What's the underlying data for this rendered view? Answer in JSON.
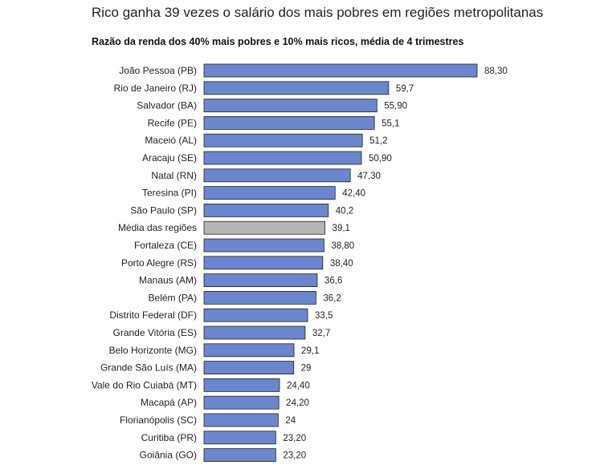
{
  "chart_data": {
    "type": "bar",
    "orientation": "horizontal",
    "title": "Rico ganha 39 vezes o salário dos mais pobres em regiões metropolitanas",
    "subtitle": "Razão da renda dos 40% mais pobres e 10% mais ricos, média de 4 trimestres",
    "categories": [
      "João Pessoa (PB)",
      "Rio de Janeiro (RJ)",
      "Salvador (BA)",
      "Recife (PE)",
      "Maceió (AL)",
      "Aracaju (SE)",
      "Natal (RN)",
      "Teresina (PI)",
      "São Paulo (SP)",
      "Média das regiões",
      "Fortaleza (CE)",
      "Porto Alegre (RS)",
      "Manaus (AM)",
      "Belém (PA)",
      "Distrito Federal (DF)",
      "Grande Vitória (ES)",
      "Belo Horizonte (MG)",
      "Grande São Luís (MA)",
      "Vale do Rio Cuiabá (MT)",
      "Macapá (AP)",
      "Florianópolis (SC)",
      "Curitiba (PR)",
      "Goiânia (GO)"
    ],
    "values": [
      88.3,
      59.7,
      55.9,
      55.1,
      51.2,
      50.9,
      47.3,
      42.4,
      40.2,
      39.1,
      38.8,
      38.4,
      36.6,
      36.2,
      33.5,
      32.7,
      29.1,
      29,
      24.4,
      24.2,
      24,
      23.2,
      23.2
    ],
    "value_labels": [
      "88,30",
      "59,7",
      "55,90",
      "55,1",
      "51,2",
      "50,90",
      "47,30",
      "42,40",
      "40,2",
      "39,1",
      "38,80",
      "38,40",
      "36,6",
      "36,2",
      "33,5",
      "32,7",
      "29,1",
      "29",
      "24,40",
      "24,20",
      "24",
      "23,20",
      "23,20"
    ],
    "highlight_category": "Média das regiões",
    "colors": {
      "bar": "#6b86cc",
      "highlight": "#b5b5b5",
      "outline": "#222222"
    },
    "grid": false,
    "legend": "none",
    "xlim": [
      0,
      88.3
    ]
  }
}
